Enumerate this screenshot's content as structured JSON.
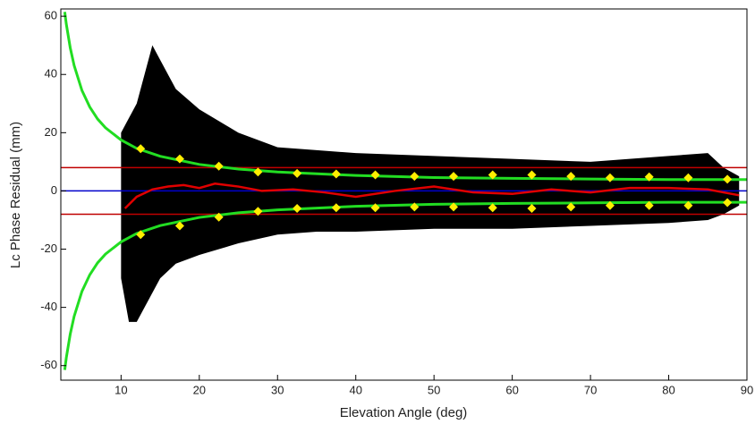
{
  "chart_data": {
    "type": "scatter",
    "xlabel": "Elevation Angle (deg)",
    "ylabel": "Lc Phase Residual (mm)",
    "xlim": [
      2.3,
      90
    ],
    "ylim": [
      -65,
      62.5
    ],
    "xticks": [
      10,
      20,
      30,
      40,
      50,
      60,
      70,
      80,
      90
    ],
    "yticks": [
      -60,
      -40,
      -20,
      0,
      20,
      40,
      60
    ],
    "band": {
      "color": "#000000",
      "x": [
        10,
        11,
        12,
        13,
        14,
        15,
        17,
        20,
        25,
        30,
        35,
        40,
        50,
        60,
        70,
        80,
        85,
        87,
        89
      ],
      "upper": [
        20,
        25,
        30,
        40,
        50,
        45,
        35,
        28,
        20,
        15,
        14,
        13,
        12,
        11,
        10,
        12,
        13,
        8,
        5
      ],
      "lower": [
        -30,
        -45,
        -45,
        -40,
        -35,
        -30,
        -25,
        -22,
        -18,
        -15,
        -14,
        -14,
        -13,
        -13,
        -12,
        -11,
        -10,
        -8,
        -5
      ]
    },
    "hlines": [
      {
        "value": 8,
        "color": "#c00000"
      },
      {
        "value": -8,
        "color": "#c00000"
      },
      {
        "value": 0,
        "color": "#0000cc"
      }
    ],
    "series": [
      {
        "kind": "line",
        "color": "#22dd22",
        "width": 3,
        "x": [
          2.8,
          3,
          3.5,
          4,
          5,
          6,
          7,
          8,
          10,
          12,
          15,
          20,
          25,
          30,
          40,
          50,
          60,
          70,
          80,
          90
        ],
        "values": [
          61.5,
          57.3,
          49.2,
          43.1,
          34.5,
          28.8,
          24.7,
          21.7,
          17.5,
          14.6,
          11.9,
          9.1,
          7.5,
          6.5,
          5.3,
          4.6,
          4.3,
          4.1,
          3.9,
          3.9
        ]
      },
      {
        "kind": "line",
        "color": "#22dd22",
        "width": 3,
        "x": [
          2.8,
          3,
          3.5,
          4,
          5,
          6,
          7,
          8,
          10,
          12,
          15,
          20,
          25,
          30,
          40,
          50,
          60,
          70,
          80,
          90
        ],
        "values": [
          -61.5,
          -57.3,
          -49.2,
          -43.1,
          -34.5,
          -28.8,
          -24.7,
          -21.7,
          -17.5,
          -14.6,
          -11.9,
          -9.1,
          -7.5,
          -6.5,
          -5.3,
          -4.6,
          -4.3,
          -4.1,
          -3.9,
          -3.9
        ]
      },
      {
        "kind": "line",
        "color": "#e00000",
        "width": 2.5,
        "x": [
          10.5,
          12,
          14,
          16,
          18,
          20,
          22,
          25,
          28,
          32,
          36,
          40,
          45,
          50,
          55,
          60,
          65,
          70,
          75,
          80,
          85,
          89
        ],
        "values": [
          -6,
          -2,
          0.5,
          1.5,
          2,
          1,
          2.5,
          1.5,
          0,
          0.5,
          -0.5,
          -2,
          0,
          1.5,
          -0.5,
          -1,
          0.5,
          -0.5,
          1,
          1,
          0.5,
          -1.5
        ]
      },
      {
        "kind": "points",
        "color": "#ffee00",
        "x": [
          12.5,
          17.5,
          22.5,
          27.5,
          32.5,
          37.5,
          42.5,
          47.5,
          52.5,
          57.5,
          62.5,
          67.5,
          72.5,
          77.5,
          82.5,
          87.5
        ],
        "values": [
          14.5,
          11,
          8.5,
          6.5,
          6,
          5.8,
          5.5,
          5,
          5,
          5.5,
          5.5,
          5,
          4.5,
          4.8,
          4.5,
          4
        ]
      },
      {
        "kind": "points",
        "color": "#ffee00",
        "x": [
          12.5,
          17.5,
          22.5,
          27.5,
          32.5,
          37.5,
          42.5,
          47.5,
          52.5,
          57.5,
          62.5,
          67.5,
          72.5,
          77.5,
          82.5,
          87.5
        ],
        "values": [
          -15,
          -12,
          -9,
          -7,
          -6,
          -5.8,
          -5.8,
          -5.5,
          -5.5,
          -5.8,
          -6,
          -5.5,
          -5,
          -5,
          -5,
          -4
        ]
      }
    ]
  }
}
